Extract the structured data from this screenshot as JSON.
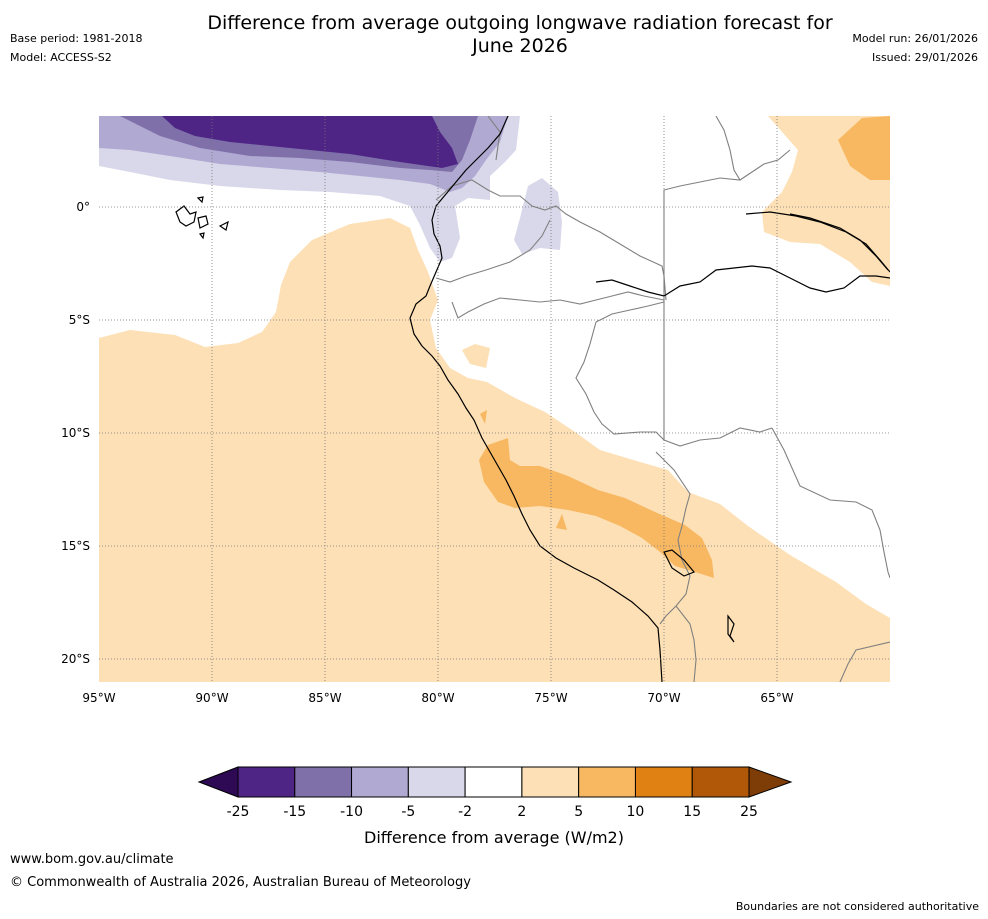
{
  "header": {
    "title_line1": "Difference from average outgoing longwave radiation forecast for",
    "title_line2": "June 2026",
    "base_period": "Base period: 1981-2018",
    "model": "Model: ACCESS-S2",
    "model_run": "Model run: 26/01/2026",
    "issued": "Issued: 29/01/2026"
  },
  "map": {
    "lat_labels": [
      "0°",
      "5°S",
      "10°S",
      "15°S",
      "20°S"
    ],
    "lon_labels": [
      "95°W",
      "90°W",
      "85°W",
      "80°W",
      "75°W",
      "70°W",
      "65°W"
    ],
    "extent": {
      "lon": [
        -95,
        -60
      ],
      "lat": [
        -21,
        4
      ]
    }
  },
  "colorbar": {
    "ticks": [
      "-25",
      "-15",
      "-10",
      "-5",
      "-2",
      "2",
      "5",
      "10",
      "15",
      "25"
    ],
    "colors": [
      "#2d0a53",
      "#4e2485",
      "#7f70aa",
      "#b0a9d1",
      "#d8d8ea",
      "#ffffff",
      "#fde0b5",
      "#f8b862",
      "#e08213",
      "#b15808",
      "#7e3d06"
    ],
    "label": "Difference from average (W/m2)"
  },
  "footer": {
    "url": "www.bom.gov.au/climate",
    "copyright": "© Commonwealth of Australia 2026, Australian Bureau of Meteorology",
    "disclaimer": "Boundaries are not considered authoritative"
  }
}
